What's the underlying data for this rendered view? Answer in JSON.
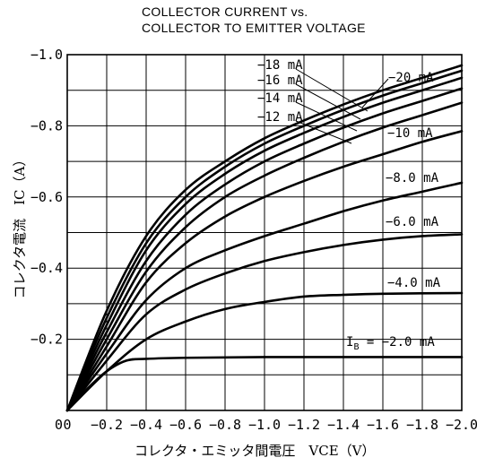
{
  "chart_data": {
    "type": "line",
    "title": [
      "COLLECTOR CURRENT vs.",
      "COLLECTOR TO EMITTER VOLTAGE"
    ],
    "xlabel": "コレクタ・エミッタ間電圧　VCE（V）",
    "ylabel": "コレクタ電流　IC（A）",
    "xlim": [
      0,
      -2.0
    ],
    "ylim": [
      0,
      -1.0
    ],
    "x_ticks": [
      0,
      -0.2,
      -0.4,
      -0.6,
      -0.8,
      -1.0,
      -1.2,
      -1.4,
      -1.6,
      -1.8,
      -2.0
    ],
    "x_tick_labels": [
      "0",
      "−0.2",
      "−0.4",
      "−0.6",
      "−0.8",
      "−1.0",
      "−1.2",
      "−1.4",
      "−1.6",
      "−1.8",
      "−2.0"
    ],
    "y_ticks": [
      -0.2,
      -0.4,
      -0.6,
      -0.8,
      -1.0
    ],
    "y_tick_labels": [
      "−0.2",
      "−0.4",
      "−0.6",
      "−0.8",
      "−1.0"
    ],
    "grid": true,
    "series": [
      {
        "name": "IB = −2.0 mA",
        "x": [
          0,
          -0.1,
          -0.2,
          -0.3,
          -0.4,
          -0.6,
          -1.0,
          -1.5,
          -2.0
        ],
        "y": [
          0,
          -0.06,
          -0.11,
          -0.14,
          -0.145,
          -0.148,
          -0.15,
          -0.15,
          -0.15
        ]
      },
      {
        "name": "−4.0 mA",
        "x": [
          0,
          -0.2,
          -0.4,
          -0.6,
          -0.8,
          -1.0,
          -1.2,
          -1.4,
          -1.6,
          -2.0
        ],
        "y": [
          0,
          -0.11,
          -0.2,
          -0.25,
          -0.285,
          -0.305,
          -0.32,
          -0.325,
          -0.328,
          -0.33
        ]
      },
      {
        "name": "−6.0 mA",
        "x": [
          0,
          -0.2,
          -0.4,
          -0.6,
          -0.8,
          -1.0,
          -1.2,
          -1.4,
          -1.6,
          -1.8,
          -2.0
        ],
        "y": [
          0,
          -0.14,
          -0.27,
          -0.34,
          -0.385,
          -0.42,
          -0.445,
          -0.465,
          -0.48,
          -0.49,
          -0.495
        ]
      },
      {
        "name": "−8.0 mA",
        "x": [
          0,
          -0.2,
          -0.4,
          -0.6,
          -0.8,
          -1.0,
          -1.2,
          -1.4,
          -1.6,
          -1.8,
          -2.0
        ],
        "y": [
          0,
          -0.16,
          -0.31,
          -0.4,
          -0.45,
          -0.49,
          -0.525,
          -0.56,
          -0.59,
          -0.615,
          -0.64
        ]
      },
      {
        "name": "−10 mA",
        "x": [
          0,
          -0.2,
          -0.4,
          -0.6,
          -0.8,
          -1.0,
          -1.2,
          -1.4,
          -1.6,
          -1.8,
          -2.0
        ],
        "y": [
          0,
          -0.18,
          -0.36,
          -0.47,
          -0.545,
          -0.6,
          -0.645,
          -0.685,
          -0.72,
          -0.755,
          -0.785
        ]
      },
      {
        "name": "−12 mA",
        "x": [
          0,
          -0.2,
          -0.4,
          -0.6,
          -0.8,
          -1.0,
          -1.2,
          -1.4,
          -1.6,
          -1.8,
          -2.0
        ],
        "y": [
          0,
          -0.2,
          -0.39,
          -0.515,
          -0.6,
          -0.66,
          -0.71,
          -0.755,
          -0.795,
          -0.83,
          -0.865
        ]
      },
      {
        "name": "−14 mA",
        "x": [
          0,
          -0.2,
          -0.4,
          -0.6,
          -0.8,
          -1.0,
          -1.2,
          -1.4,
          -1.6,
          -1.8,
          -2.0
        ],
        "y": [
          0,
          -0.22,
          -0.42,
          -0.55,
          -0.635,
          -0.7,
          -0.75,
          -0.795,
          -0.835,
          -0.87,
          -0.905
        ]
      },
      {
        "name": "−16 mA",
        "x": [
          0,
          -0.2,
          -0.4,
          -0.6,
          -0.8,
          -1.0,
          -1.2,
          -1.4,
          -1.6,
          -1.8,
          -2.0
        ],
        "y": [
          0,
          -0.24,
          -0.45,
          -0.58,
          -0.665,
          -0.73,
          -0.78,
          -0.825,
          -0.865,
          -0.9,
          -0.935
        ]
      },
      {
        "name": "−18 mA",
        "x": [
          0,
          -0.2,
          -0.4,
          -0.6,
          -0.8,
          -1.0,
          -1.2,
          -1.4,
          -1.6,
          -1.8,
          -2.0
        ],
        "y": [
          0,
          -0.26,
          -0.47,
          -0.6,
          -0.685,
          -0.75,
          -0.8,
          -0.845,
          -0.885,
          -0.92,
          -0.955
        ]
      },
      {
        "name": "−20 mA",
        "x": [
          0,
          -0.2,
          -0.4,
          -0.6,
          -0.8,
          -1.0,
          -1.2,
          -1.4,
          -1.6,
          -1.8,
          -2.0
        ],
        "y": [
          0,
          -0.28,
          -0.49,
          -0.62,
          -0.7,
          -0.765,
          -0.815,
          -0.86,
          -0.9,
          -0.935,
          -0.97
        ]
      }
    ]
  }
}
